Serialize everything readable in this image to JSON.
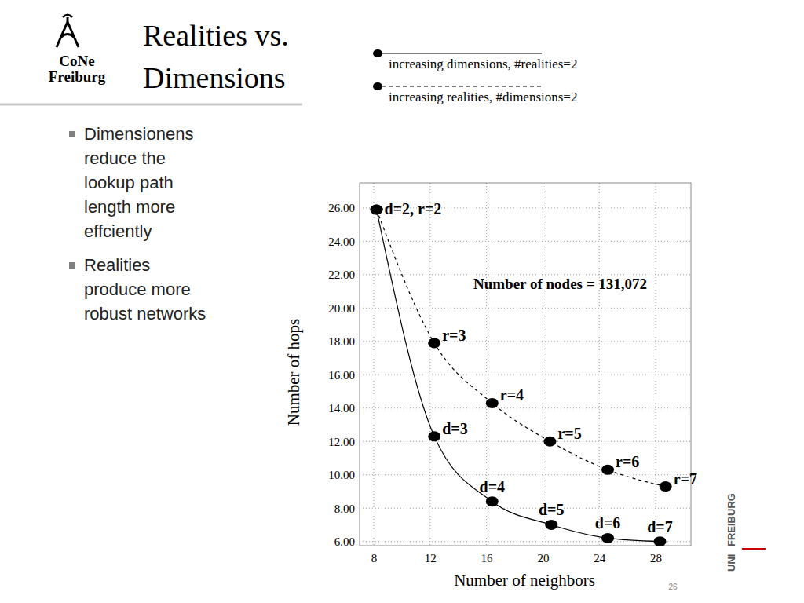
{
  "slide": {
    "logo": [
      "CoNe",
      "Freiburg"
    ],
    "title": [
      "Realities vs.",
      "Dimensions"
    ],
    "bullets": [
      [
        "Dimensionens",
        "reduce the",
        "lookup path",
        "length more",
        "effciently"
      ],
      [
        "Realities",
        "produce more",
        "robust networks"
      ]
    ],
    "page_number": 26,
    "university_logo": [
      "UNI",
      "FREIBURG"
    ]
  },
  "chart_data": {
    "type": "line",
    "x_label": "Number of neighbors",
    "y_label": "Number of hops",
    "annotation": "Number of nodes = 131,072",
    "xlim": [
      7,
      30.5
    ],
    "ylim": [
      5.75,
      27.5
    ],
    "xticks": [
      8,
      12,
      16,
      20,
      24,
      28
    ],
    "yticks": [
      {
        "value": 6,
        "label": "6.00"
      },
      {
        "value": 8,
        "label": "8.00"
      },
      {
        "value": 10,
        "label": "10.00"
      },
      {
        "value": 12,
        "label": "12.00"
      },
      {
        "value": 14,
        "label": "14.00"
      },
      {
        "value": 16,
        "label": "16.00"
      },
      {
        "value": 18,
        "label": "18.00"
      },
      {
        "value": 20,
        "label": "20.00"
      },
      {
        "value": 22,
        "label": "22.00"
      },
      {
        "value": 24,
        "label": "24.00"
      },
      {
        "value": 26,
        "label": "26.00"
      }
    ],
    "grid": true,
    "legend": "top",
    "series": [
      {
        "name": "increasing dimensions, #realities=2",
        "color": "#000000",
        "line_style": "solid",
        "marker": "circle",
        "x": [
          8.2,
          12.3,
          16.4,
          20.6,
          24.6,
          28.3
        ],
        "values": [
          25.9,
          12.3,
          8.4,
          7.0,
          6.2,
          6.0
        ],
        "labels": [
          "d=2, r=2",
          "d=3",
          "d=4",
          "d=5",
          "d=6",
          "d=7"
        ]
      },
      {
        "name": "increasing realities, #dimensions=2",
        "color": "#000000",
        "line_style": "dashed",
        "marker": "circle",
        "x": [
          8.2,
          12.3,
          16.4,
          20.5,
          24.6,
          28.7
        ],
        "values": [
          25.9,
          17.9,
          14.3,
          12.0,
          10.3,
          9.3
        ],
        "labels": [
          null,
          "r=3",
          "r=4",
          "r=5",
          "r=6",
          "r=7"
        ]
      }
    ]
  }
}
